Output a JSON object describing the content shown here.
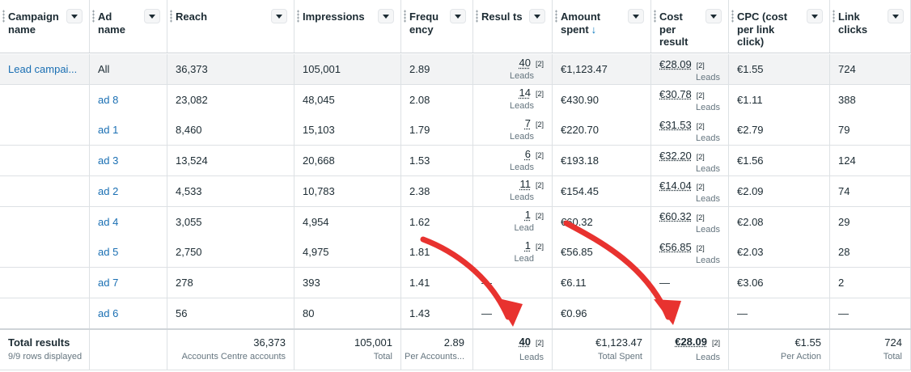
{
  "columns": [
    {
      "key": "campaign",
      "label": "Campaign name",
      "width": 111
    },
    {
      "key": "ad",
      "label": "Ad name",
      "width": 96
    },
    {
      "key": "reach",
      "label": "Reach",
      "width": 157
    },
    {
      "key": "impressions",
      "label": "Impressions",
      "width": 132
    },
    {
      "key": "frequency",
      "label": "Frequ ency",
      "width": 89
    },
    {
      "key": "results",
      "label": "Resul ts",
      "width": 98
    },
    {
      "key": "amount",
      "label": "Amount spent",
      "width": 122,
      "sort_indicator": "↓"
    },
    {
      "key": "cpr",
      "label": "Cost per result",
      "width": 96
    },
    {
      "key": "cpc",
      "label": "CPC (cost per link click)",
      "width": 125
    },
    {
      "key": "clicks",
      "label": "Link clicks",
      "width": 100
    }
  ],
  "campaign_name": "Lead campai...",
  "rows": [
    {
      "ad": "All",
      "reach": "36,373",
      "impressions": "105,001",
      "frequency": "2.89",
      "results": "40",
      "results_sup": "[2]",
      "results_sub": "Leads",
      "amount": "€1,123.47",
      "cpr": "€28.09",
      "cpr_sup": "[2]",
      "cpr_sub": "Leads",
      "cpc": "€1.55",
      "clicks": "724"
    },
    {
      "ad": "ad 8",
      "reach": "23,082",
      "impressions": "48,045",
      "frequency": "2.08",
      "results": "14",
      "results_sup": "[2]",
      "results_sub": "Leads",
      "amount": "€430.90",
      "cpr": "€30.78",
      "cpr_sup": "[2]",
      "cpr_sub": "Leads",
      "cpc": "€1.11",
      "clicks": "388"
    },
    {
      "ad": "ad 1",
      "reach": "8,460",
      "impressions": "15,103",
      "frequency": "1.79",
      "results": "7",
      "results_sup": "[2]",
      "results_sub": "Leads",
      "amount": "€220.70",
      "cpr": "€31.53",
      "cpr_sup": "[2]",
      "cpr_sub": "Leads",
      "cpc": "€2.79",
      "clicks": "79"
    },
    {
      "ad": "ad 3",
      "reach": "13,524",
      "impressions": "20,668",
      "frequency": "1.53",
      "results": "6",
      "results_sup": "[2]",
      "results_sub": "Leads",
      "amount": "€193.18",
      "cpr": "€32.20",
      "cpr_sup": "[2]",
      "cpr_sub": "Leads",
      "cpc": "€1.56",
      "clicks": "124"
    },
    {
      "ad": "ad 2",
      "reach": "4,533",
      "impressions": "10,783",
      "frequency": "2.38",
      "results": "11",
      "results_sup": "[2]",
      "results_sub": "Leads",
      "amount": "€154.45",
      "cpr": "€14.04",
      "cpr_sup": "[2]",
      "cpr_sub": "Leads",
      "cpc": "€2.09",
      "clicks": "74"
    },
    {
      "ad": "ad 4",
      "reach": "3,055",
      "impressions": "4,954",
      "frequency": "1.62",
      "results": "1",
      "results_sup": "[2]",
      "results_sub": "Lead",
      "amount": "€60.32",
      "cpr": "€60.32",
      "cpr_sup": "[2]",
      "cpr_sub": "Leads",
      "cpc": "€2.08",
      "clicks": "29"
    },
    {
      "ad": "ad 5",
      "reach": "2,750",
      "impressions": "4,975",
      "frequency": "1.81",
      "results": "1",
      "results_sup": "[2]",
      "results_sub": "Lead",
      "amount": "€56.85",
      "cpr": "€56.85",
      "cpr_sup": "[2]",
      "cpr_sub": "Leads",
      "cpc": "€2.03",
      "clicks": "28"
    },
    {
      "ad": "ad 7",
      "reach": "278",
      "impressions": "393",
      "frequency": "1.41",
      "results": "—",
      "results_sup": "",
      "results_sub": "",
      "amount": "€6.11",
      "cpr": "—",
      "cpr_sup": "",
      "cpr_sub": "",
      "cpc": "€3.06",
      "clicks": "2"
    },
    {
      "ad": "ad 6",
      "reach": "56",
      "impressions": "80",
      "frequency": "1.43",
      "results": "—",
      "results_sup": "",
      "results_sub": "",
      "amount": "€0.96",
      "cpr": "",
      "cpr_sup": "",
      "cpr_sub": "",
      "cpc": "—",
      "clicks": "—"
    }
  ],
  "totals": {
    "label": "Total results",
    "sublabel": "9/9 rows displayed",
    "reach": "36,373",
    "reach_sub": "Accounts Centre accounts",
    "impressions": "105,001",
    "impressions_sub": "Total",
    "frequency": "2.89",
    "frequency_sub": "Per Accounts...",
    "results": "40",
    "results_sup": "[2]",
    "results_sub": "Leads",
    "amount": "€1,123.47",
    "amount_sub": "Total Spent",
    "cpr": "€28.09",
    "cpr_sup": "[2]",
    "cpr_sub": "Leads",
    "cpc": "€1.55",
    "cpc_sub": "Per Action",
    "clicks": "724",
    "clicks_sub": "Total"
  },
  "annotation_color": "#e8322f"
}
